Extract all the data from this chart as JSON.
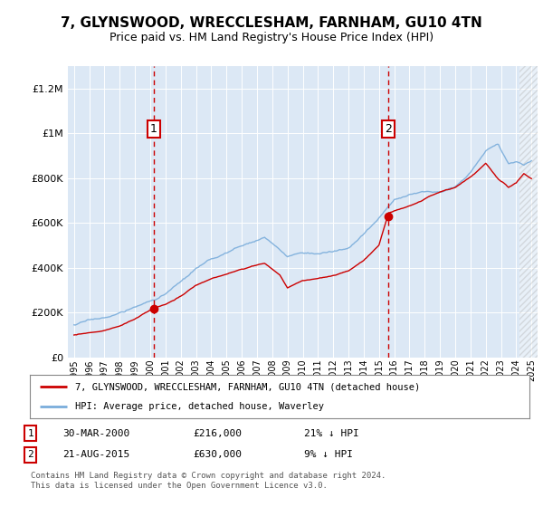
{
  "title": "7, GLYNSWOOD, WRECCLESHAM, FARNHAM, GU10 4TN",
  "subtitle": "Price paid vs. HM Land Registry's House Price Index (HPI)",
  "legend_label_red": "7, GLYNSWOOD, WRECCLESHAM, FARNHAM, GU10 4TN (detached house)",
  "legend_label_blue": "HPI: Average price, detached house, Waverley",
  "annotation1_label": "1",
  "annotation1_date": "30-MAR-2000",
  "annotation1_price": "£216,000",
  "annotation1_hpi": "21% ↓ HPI",
  "annotation2_label": "2",
  "annotation2_date": "21-AUG-2015",
  "annotation2_price": "£630,000",
  "annotation2_hpi": "9% ↓ HPI",
  "footnote": "Contains HM Land Registry data © Crown copyright and database right 2024.\nThis data is licensed under the Open Government Licence v3.0.",
  "ylim": [
    0,
    1300000
  ],
  "yticks": [
    0,
    200000,
    400000,
    600000,
    800000,
    1000000,
    1200000
  ],
  "background_color": "#dce8f5",
  "red_color": "#cc0000",
  "blue_color": "#7aaddb",
  "grid_color": "#ffffff",
  "marker1_year": 2000.22,
  "marker2_year": 2015.63,
  "sale1_price": 216000,
  "sale2_price": 630000
}
